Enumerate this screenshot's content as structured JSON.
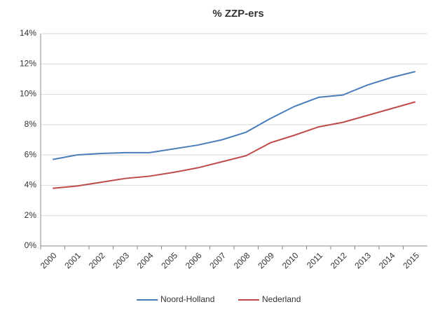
{
  "chart_data": {
    "type": "line",
    "title": "% ZZP-ers",
    "categories": [
      "2000",
      "2001",
      "2002",
      "2003",
      "2004",
      "2005",
      "2006",
      "2007",
      "2008",
      "2009",
      "2010",
      "2011",
      "2012",
      "2013",
      "2014",
      "2015"
    ],
    "series": [
      {
        "name": "Noord-Holland",
        "color": "#4a7ebb",
        "values": [
          5.7,
          6.0,
          6.1,
          6.15,
          6.15,
          6.4,
          6.65,
          7.0,
          7.5,
          8.4,
          9.2,
          9.8,
          9.95,
          10.6,
          11.1,
          11.5
        ]
      },
      {
        "name": "Nederland",
        "color": "#be4b48",
        "values": [
          3.8,
          3.95,
          4.2,
          4.45,
          4.6,
          4.85,
          5.15,
          5.55,
          5.95,
          6.8,
          7.3,
          7.85,
          8.15,
          8.6,
          9.05,
          9.5
        ]
      }
    ],
    "ylim": [
      0,
      14
    ],
    "yticks": [
      {
        "value": 0,
        "label": "0%"
      },
      {
        "value": 2,
        "label": "2%"
      },
      {
        "value": 4,
        "label": "4%"
      },
      {
        "value": 6,
        "label": "6%"
      },
      {
        "value": 8,
        "label": "8%"
      },
      {
        "value": 10,
        "label": "10%"
      },
      {
        "value": 12,
        "label": "12%"
      },
      {
        "value": 14,
        "label": "14%"
      }
    ],
    "grid": true,
    "legend": "bottom"
  }
}
